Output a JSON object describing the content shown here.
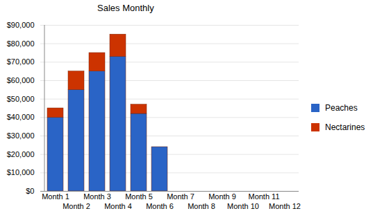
{
  "chart_data": {
    "type": "bar",
    "title": "Sales Monthly",
    "categories": [
      "Month 1",
      "Month 2",
      "Month 3",
      "Month 4",
      "Month 5",
      "Month 6",
      "Month 7",
      "Month 8",
      "Month 9",
      "Month 10",
      "Month 11",
      "Month 12"
    ],
    "series": [
      {
        "name": "Peaches",
        "color": "#2a64c6",
        "values": [
          40000,
          55000,
          65000,
          73000,
          42000,
          24000,
          0,
          0,
          0,
          0,
          0,
          0
        ]
      },
      {
        "name": "Nectarines",
        "color": "#cc3300",
        "values": [
          5000,
          10000,
          10000,
          12000,
          5000,
          0,
          0,
          0,
          0,
          0,
          0,
          0
        ]
      }
    ],
    "stacked": true,
    "ylim": [
      0,
      90000
    ],
    "yticks": [
      {
        "value": 0,
        "label": "$0"
      },
      {
        "value": 10000,
        "label": "$10,000"
      },
      {
        "value": 20000,
        "label": "$20,000"
      },
      {
        "value": 30000,
        "label": "$30,000"
      },
      {
        "value": 40000,
        "label": "$40,000"
      },
      {
        "value": 50000,
        "label": "$50,000"
      },
      {
        "value": 60000,
        "label": "$60,000"
      },
      {
        "value": 70000,
        "label": "$70,000"
      },
      {
        "value": 80000,
        "label": "$80,000"
      },
      {
        "value": 90000,
        "label": "$90,000"
      }
    ],
    "grid": true,
    "legend": "right"
  }
}
